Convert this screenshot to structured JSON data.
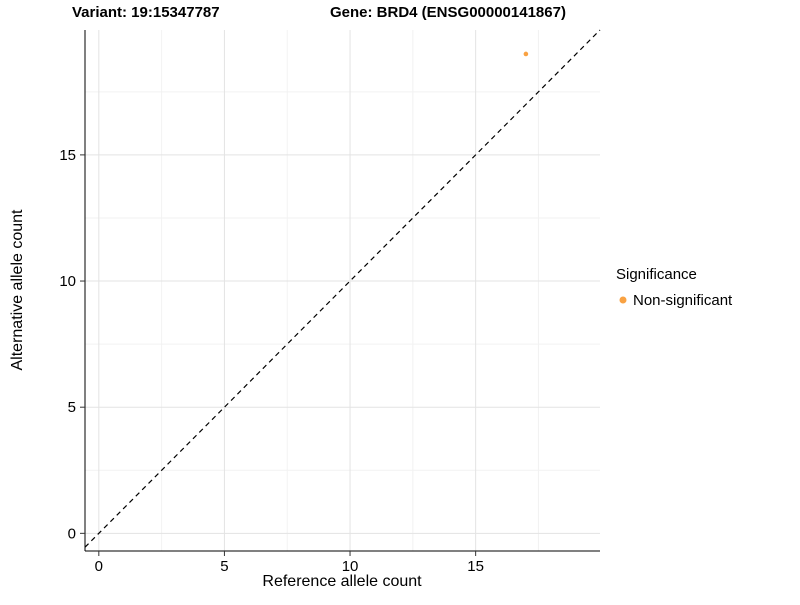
{
  "titles": {
    "left": "Variant: 19:15347787",
    "right": "Gene: BRD4 (ENSG00000141867)"
  },
  "chart_data": {
    "type": "scatter",
    "title_left": "Variant: 19:15347787",
    "title_right": "Gene: BRD4 (ENSG00000141867)",
    "xlabel": "Reference allele count",
    "ylabel": "Alternative allele count",
    "xlim": [
      -0.55,
      19.95
    ],
    "ylim": [
      -0.7,
      19.95
    ],
    "xticks": [
      0,
      5,
      10,
      15
    ],
    "yticks": [
      0,
      5,
      10,
      15
    ],
    "xticks_minor": [
      2.5,
      7.5,
      12.5,
      17.5
    ],
    "yticks_minor": [
      2.5,
      7.5,
      12.5,
      17.5
    ],
    "grid": true,
    "points": [
      {
        "x": 17,
        "y": 19,
        "series": "Non-significant"
      }
    ],
    "identity_line": {
      "style": "dashed",
      "from": [
        -0.55,
        -0.55
      ],
      "to": [
        19.95,
        19.95
      ]
    },
    "legend": {
      "title": "Significance",
      "position": "right",
      "entries": [
        {
          "label": "Non-significant",
          "color": "#F9A242",
          "marker": "circle"
        }
      ]
    },
    "colors": {
      "point": "#F9A242",
      "grid_major": "#e3e3e3",
      "grid_minor": "#f2f2f2",
      "axis": "#000000",
      "dashed_line": "#000000",
      "tick": "#333333"
    }
  }
}
